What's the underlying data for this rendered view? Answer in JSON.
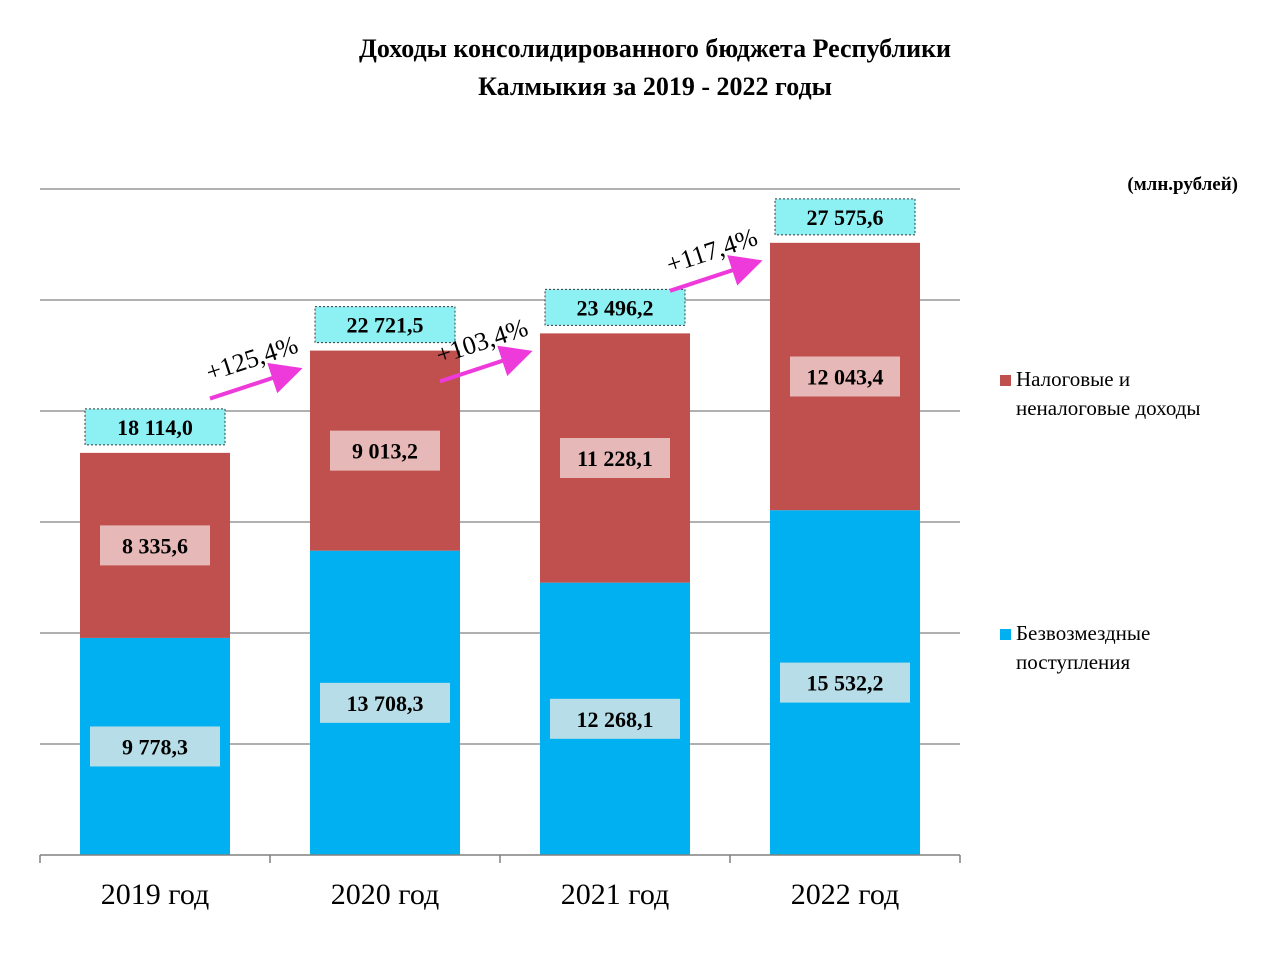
{
  "chart_data": {
    "type": "bar",
    "stacked": true,
    "title": [
      "Доходы консолидированного  бюджета Республики",
      "Калмыкия за 2019 - 2022 годы"
    ],
    "unit": "(млн.рублей)",
    "categories": [
      "2019 год",
      "2020 год",
      "2021 год",
      "2022 год"
    ],
    "series": [
      {
        "name": "Безвозмездные поступления",
        "color": "#00B0F0",
        "values": [
          9778.3,
          13708.3,
          12268.1,
          15532.2
        ],
        "labels": [
          "9 778,3",
          "13 708,3",
          "12 268,1",
          "15 532,2"
        ]
      },
      {
        "name": "Налоговые и неналоговые доходы",
        "color": "#C0504D",
        "values": [
          8335.6,
          9013.2,
          11228.1,
          12043.4
        ],
        "labels": [
          "8 335,6",
          "9 013,2",
          "11 228,1",
          "12 043,4"
        ]
      }
    ],
    "totals": [
      "18 114,0",
      "22 721,5",
      "23 496,2",
      "27 575,6"
    ],
    "growth": [
      "+125,4%",
      "+103,4%",
      "+117,4%"
    ],
    "ylim": [
      0,
      30000
    ],
    "grid": true,
    "legend_position": "right",
    "legend_lines": [
      [
        "Налоговые и",
        "неналоговые доходы"
      ],
      [
        "Безвозмездные",
        "поступления"
      ]
    ]
  }
}
